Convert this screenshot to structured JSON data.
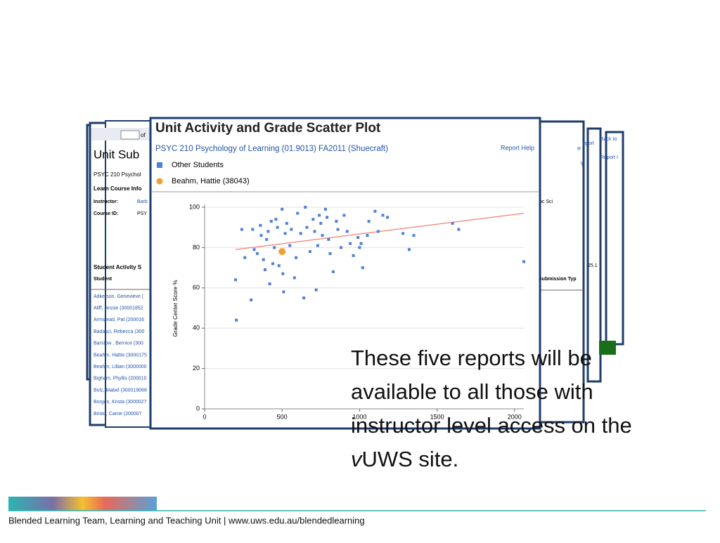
{
  "back_window": {
    "title": "Unit Sub",
    "course": "PSYC 210 Psychol",
    "section": "Learn Course Info",
    "instructor_label": "Instructor:",
    "instructor": "Barb",
    "course_id_label": "Course ID:",
    "course_id": "PSY",
    "activity_heading": "Student Activity S",
    "column": "Student",
    "students": [
      "Adkerson, Genevieve (",
      "Aliff, Jessie (30001852",
      "Armstead, Pat (200016",
      "Badasci, Rebecca (300",
      "Barstow , Bernice (300",
      "Beahm, Hattie (3000175",
      "Beahm, Lillian (3000000",
      "Bigham, Phyllis (200010",
      "Bolz, Mabel (300019068",
      "Borges, Krista (3000027",
      "Bristo, Carrie (200007"
    ],
    "page_of": "of"
  },
  "right_windows": {
    "dept": "oc Sci",
    "value": "25.1",
    "column": "Submission Typ",
    "link1": "R",
    "link2": "lp",
    "link3": "eport",
    "link4": "Back to",
    "link5": "Report I"
  },
  "chart_data": {
    "type": "scatter",
    "title": "Unit Activity and Grade Scatter Plot",
    "subtitle": "PSYC 210 Psychology of Learning (01.9013) FA2011 (Shuecraft)",
    "help": "Report Help",
    "y_label": "Grade Center Score %",
    "xlim": [
      0,
      2060
    ],
    "ylim": [
      0,
      100
    ],
    "xticks": [
      0,
      500,
      1000,
      1500,
      2000
    ],
    "yticks": [
      0,
      20,
      40,
      60,
      80,
      100
    ],
    "grid": true,
    "series": [
      {
        "name": "Other Students",
        "color": "#4f7fd6",
        "x": [
          200,
          205,
          240,
          260,
          300,
          310,
          320,
          340,
          360,
          365,
          380,
          390,
          400,
          410,
          420,
          430,
          440,
          450,
          460,
          470,
          480,
          500,
          505,
          510,
          520,
          530,
          550,
          560,
          580,
          590,
          600,
          620,
          640,
          650,
          660,
          680,
          700,
          710,
          720,
          730,
          740,
          750,
          760,
          780,
          790,
          800,
          810,
          830,
          850,
          860,
          880,
          900,
          920,
          940,
          960,
          990,
          1000,
          1010,
          1020,
          1050,
          1060,
          1100,
          1120,
          1150,
          1180,
          1280,
          1320,
          1350,
          1600,
          1640,
          2060
        ],
        "values": [
          64,
          44,
          89,
          75,
          54,
          89,
          79,
          77,
          91,
          86,
          74,
          69,
          84,
          88,
          62,
          93,
          72,
          80,
          94,
          90,
          71,
          99,
          67,
          58,
          87,
          92,
          81,
          89,
          65,
          75,
          97,
          87,
          55,
          100,
          90,
          78,
          94,
          88,
          59,
          81,
          96,
          92,
          86,
          99,
          95,
          84,
          77,
          68,
          93,
          89,
          80,
          96,
          88,
          82,
          76,
          85,
          80,
          82,
          70,
          86,
          93,
          98,
          88,
          96,
          95,
          87,
          79,
          86,
          92,
          89,
          73
        ]
      },
      {
        "name": "Beahm, Hattie (38043)",
        "color": "#f0a030",
        "x": [
          500
        ],
        "values": [
          78
        ]
      }
    ],
    "trend_line": {
      "color": "#f08070",
      "x": [
        200,
        2060
      ],
      "values": [
        79,
        97
      ]
    }
  },
  "slide": {
    "lines": [
      "These five reports will be",
      "available to all those with",
      "instructor level access on the"
    ],
    "last_line": [
      "v",
      "UWS site."
    ],
    "footer": "Blended Learning Team, Learning and Teaching Unit | www.uws.edu.au/blendedlearning"
  }
}
